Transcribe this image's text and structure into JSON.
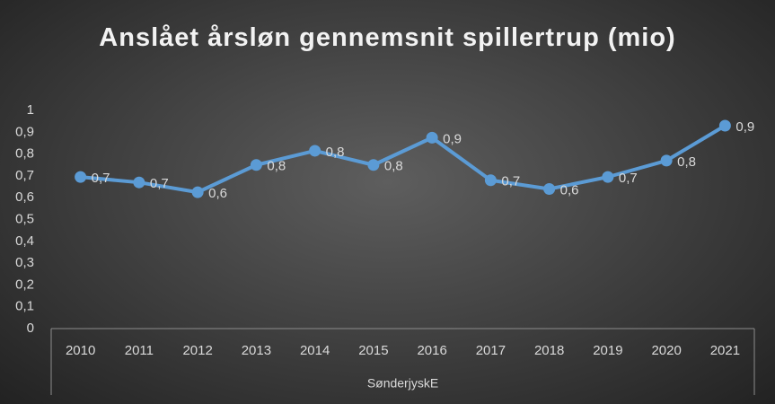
{
  "chart_data": {
    "type": "line",
    "title": "Anslået årsløn gennemsnit spillertrup (mio)",
    "xlabel": "SønderjyskE",
    "categories": [
      "2010",
      "2011",
      "2012",
      "2013",
      "2014",
      "2015",
      "2016",
      "2017",
      "2018",
      "2019",
      "2020",
      "2021"
    ],
    "values": [
      0.695,
      0.67,
      0.625,
      0.75,
      0.815,
      0.75,
      0.875,
      0.68,
      0.64,
      0.695,
      0.77,
      0.93
    ],
    "value_labels": [
      "0,7",
      "0,7",
      "0,6",
      "0,8",
      "0,8",
      "0,8",
      "0,9",
      "0,7",
      "0,6",
      "0,7",
      "0,8",
      "0,9"
    ],
    "color": "#5b9bd5",
    "ylim": [
      0,
      1
    ],
    "yticks": [
      0,
      {
        "value": 0.1,
        "label": "0,1"
      },
      {
        "value": 0.2,
        "label": "0,2"
      },
      {
        "value": 0.3,
        "label": "0,3"
      },
      {
        "value": 0.4,
        "label": "0,4"
      },
      {
        "value": 0.5,
        "label": "0,5"
      },
      {
        "value": 0.6,
        "label": "0,6"
      },
      {
        "value": 0.7,
        "label": "0,7"
      },
      {
        "value": 0.8,
        "label": "0,8"
      },
      {
        "value": 0.9,
        "label": "0,9"
      },
      1
    ],
    "grid": false
  }
}
